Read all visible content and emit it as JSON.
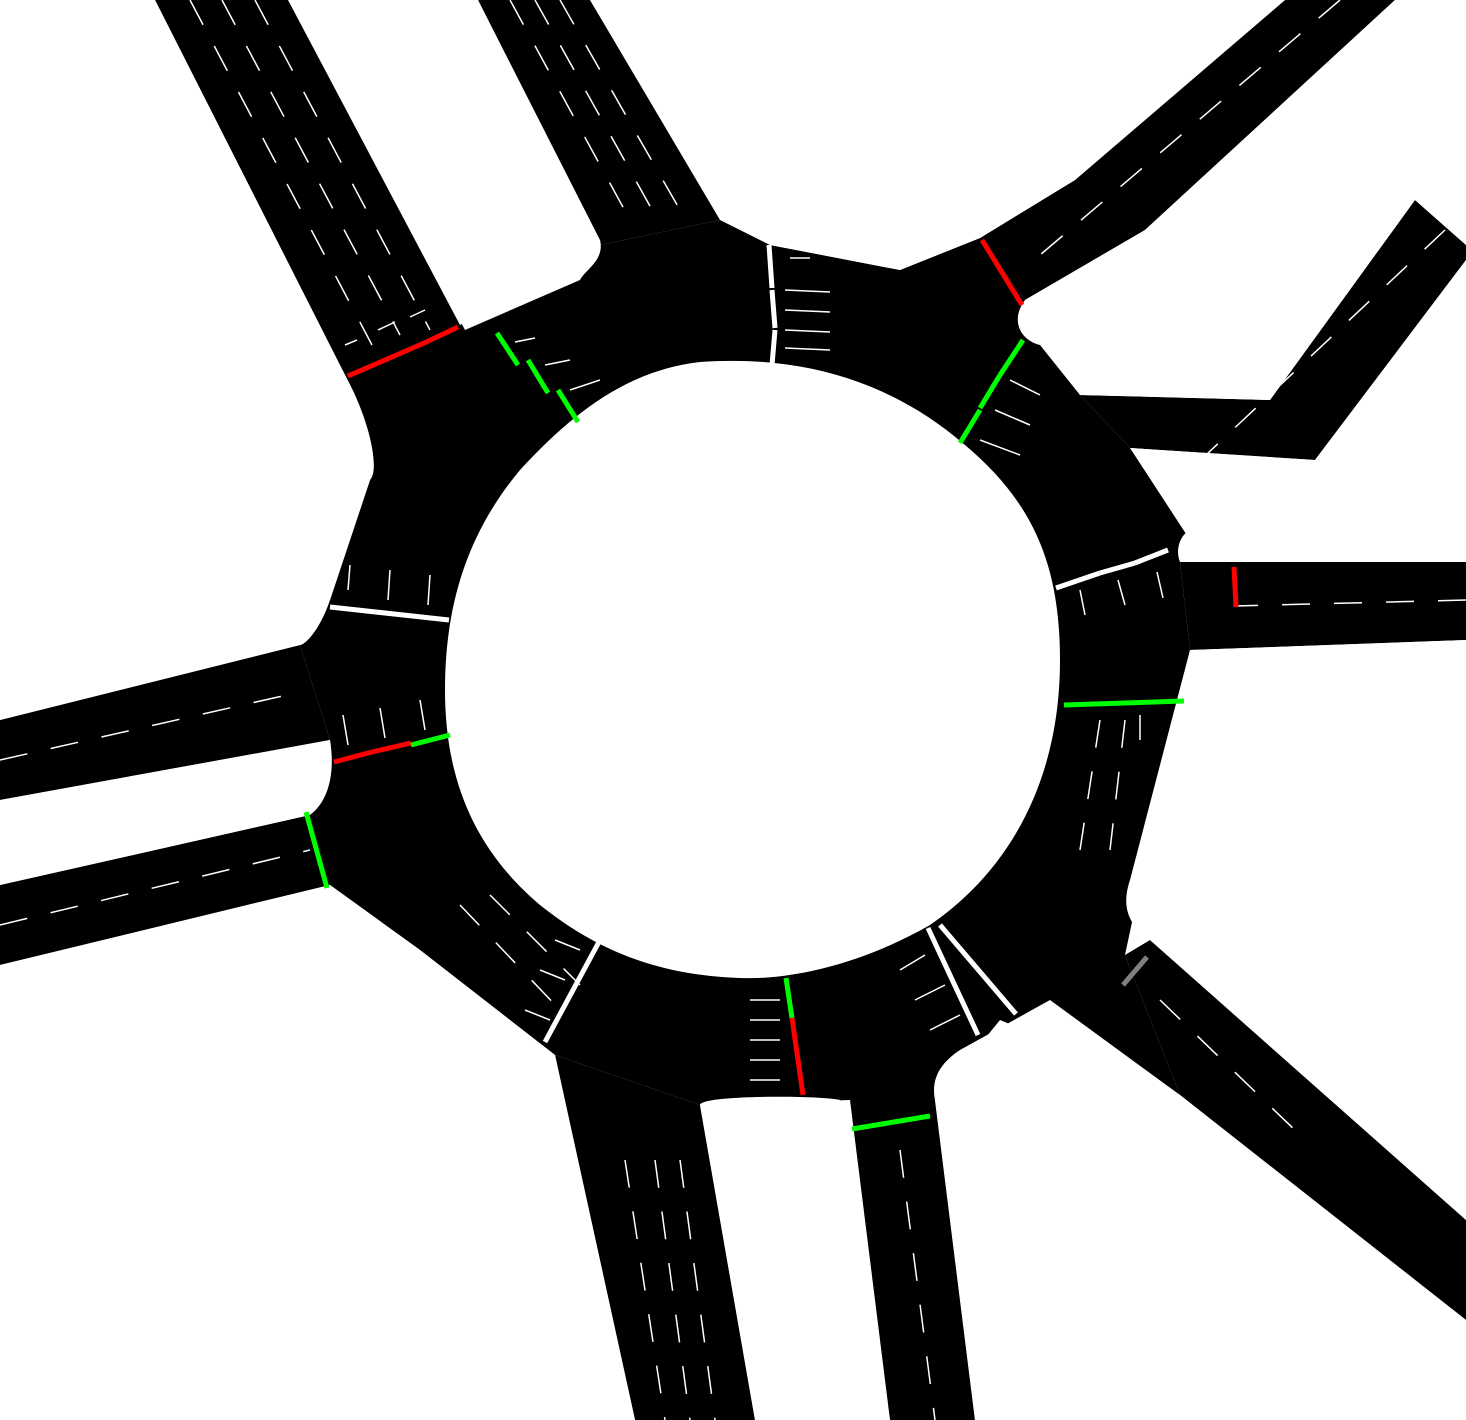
{
  "colors": {
    "background": "#ffffff",
    "road": "#000000",
    "lane_marking": "#ffffff",
    "signal_green": "#00ff00",
    "signal_red": "#ff0000",
    "signal_white": "#ffffff",
    "signal_gray": "#808080",
    "arrow": "#ffffff"
  },
  "scene": {
    "type": "roundabout-traffic-simulation",
    "approaches": [
      {
        "name": "north-west-road",
        "lanes": 4
      },
      {
        "name": "north-road",
        "lanes": 4
      },
      {
        "name": "north-east-road",
        "lanes": 2
      },
      {
        "name": "east-north-east-road",
        "lanes": 2
      },
      {
        "name": "east-road",
        "lanes": 2
      },
      {
        "name": "south-east-road",
        "lanes": 2
      },
      {
        "name": "south-road",
        "lanes": 4
      },
      {
        "name": "south-south-east-road",
        "lanes": 2
      },
      {
        "name": "west-road",
        "lanes": 2
      },
      {
        "name": "west-south-west-road",
        "lanes": 2
      }
    ],
    "signals": {
      "green": 10,
      "red": 8,
      "white": 12,
      "gray": 1
    }
  }
}
